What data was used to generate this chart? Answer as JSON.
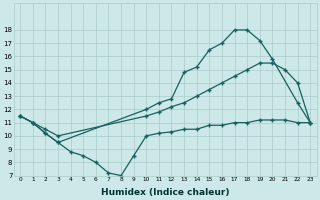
{
  "xlabel": "Humidex (Indice chaleur)",
  "bg_color": "#cce8e8",
  "grid_color": "#aacccc",
  "line_color": "#1a5f5f",
  "xlim": [
    -0.5,
    23.5
  ],
  "ylim": [
    7,
    19
  ],
  "yticks": [
    7,
    8,
    9,
    10,
    11,
    12,
    13,
    14,
    15,
    16,
    17,
    18
  ],
  "xticks": [
    0,
    1,
    2,
    3,
    4,
    5,
    6,
    7,
    8,
    9,
    10,
    11,
    12,
    13,
    14,
    15,
    16,
    17,
    18,
    19,
    20,
    21,
    22,
    23
  ],
  "curve1_x": [
    0,
    1,
    2,
    3,
    10,
    11,
    12,
    13,
    14,
    15,
    16,
    17,
    18,
    19,
    20,
    22,
    23
  ],
  "curve1_y": [
    11.5,
    11,
    10.2,
    9.5,
    12,
    12.5,
    12.8,
    14.8,
    15.2,
    16.5,
    17.0,
    18.0,
    18.0,
    17.2,
    15.8,
    12.5,
    11.0
  ],
  "curve2_x": [
    0,
    1,
    2,
    3,
    10,
    11,
    12,
    13,
    14,
    15,
    16,
    17,
    18,
    19,
    20,
    21,
    22,
    23
  ],
  "curve2_y": [
    11.5,
    11,
    10.5,
    10.0,
    11.5,
    11.8,
    12.2,
    12.5,
    13.0,
    13.5,
    14.0,
    14.5,
    15.0,
    15.5,
    15.5,
    15.0,
    14.0,
    11.0
  ],
  "curve3_x": [
    0,
    1,
    2,
    3,
    4,
    5,
    6,
    7,
    8,
    9,
    10,
    11,
    12,
    13,
    14,
    15,
    16,
    17,
    18,
    19,
    20,
    21,
    22,
    23
  ],
  "curve3_y": [
    11.5,
    11,
    10.2,
    9.5,
    8.8,
    8.5,
    8.0,
    7.2,
    7.0,
    8.5,
    10.0,
    10.2,
    10.3,
    10.5,
    10.5,
    10.8,
    10.8,
    11.0,
    11.0,
    11.2,
    11.2,
    11.2,
    11.0,
    11.0
  ]
}
